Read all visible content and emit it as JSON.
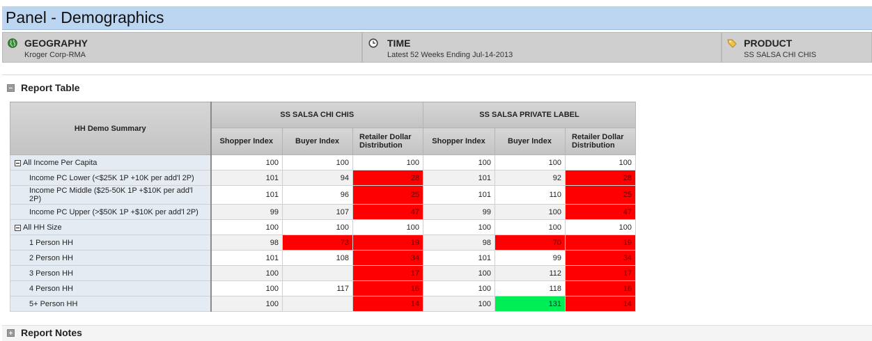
{
  "page_title": "Panel - Demographics",
  "filters": [
    {
      "title": "GEOGRAPHY",
      "value": "Kroger Corp-RMA",
      "icon": "globe-icon"
    },
    {
      "title": "TIME",
      "value": "Latest 52 Weeks Ending Jul-14-2013",
      "icon": "clock-icon"
    },
    {
      "title": "PRODUCT",
      "value": "SS SALSA CHI CHIS",
      "icon": "tag-icon"
    }
  ],
  "report_table": {
    "section_label": "Report Table",
    "row_header": "HH Demo Summary",
    "groups": [
      "SS SALSA CHI CHIS",
      "SS SALSA PRIVATE LABEL"
    ],
    "columns": [
      "Shopper Index",
      "Buyer Index",
      "Retailer Dollar Distribution"
    ],
    "rows": [
      {
        "label": "All Income Per Capita",
        "group_header": true,
        "cells": [
          "100",
          "100",
          "100",
          "100",
          "100",
          "100"
        ]
      },
      {
        "label": "Income PC Lower (<$25K 1P +10K per add'l 2P)",
        "cells": [
          "101",
          "94",
          "28",
          "101",
          "92",
          "28"
        ]
      },
      {
        "label": "Income PC Middle ($25-50K 1P +$10K per add'l 2P)",
        "cells": [
          "101",
          "96",
          "25",
          "101",
          "110",
          "25"
        ]
      },
      {
        "label": "Income PC Upper (>$50K 1P +$10K per add'l 2P)",
        "cells": [
          "99",
          "107",
          "47",
          "99",
          "100",
          "47"
        ]
      },
      {
        "label": "All HH Size",
        "group_header": true,
        "cells": [
          "100",
          "100",
          "100",
          "100",
          "100",
          "100"
        ]
      },
      {
        "label": "1 Person HH",
        "cells": [
          "98",
          "73",
          "19",
          "98",
          "70",
          "19"
        ]
      },
      {
        "label": "2 Person HH",
        "cells": [
          "101",
          "108",
          "34",
          "101",
          "99",
          "34"
        ]
      },
      {
        "label": "3 Person HH",
        "cells": [
          "100",
          "",
          "17",
          "100",
          "112",
          "17"
        ]
      },
      {
        "label": "4 Person HH",
        "cells": [
          "100",
          "117",
          "16",
          "100",
          "118",
          "16"
        ]
      },
      {
        "label": "5+ Person HH",
        "cells": [
          "100",
          "",
          "14",
          "100",
          "131",
          "14"
        ]
      }
    ]
  },
  "report_notes": {
    "section_label": "Report Notes"
  },
  "colors": {
    "highlight_low": "#ff0000",
    "highlight_high": "#00ee55",
    "title_bar": "#bcd5f0"
  }
}
